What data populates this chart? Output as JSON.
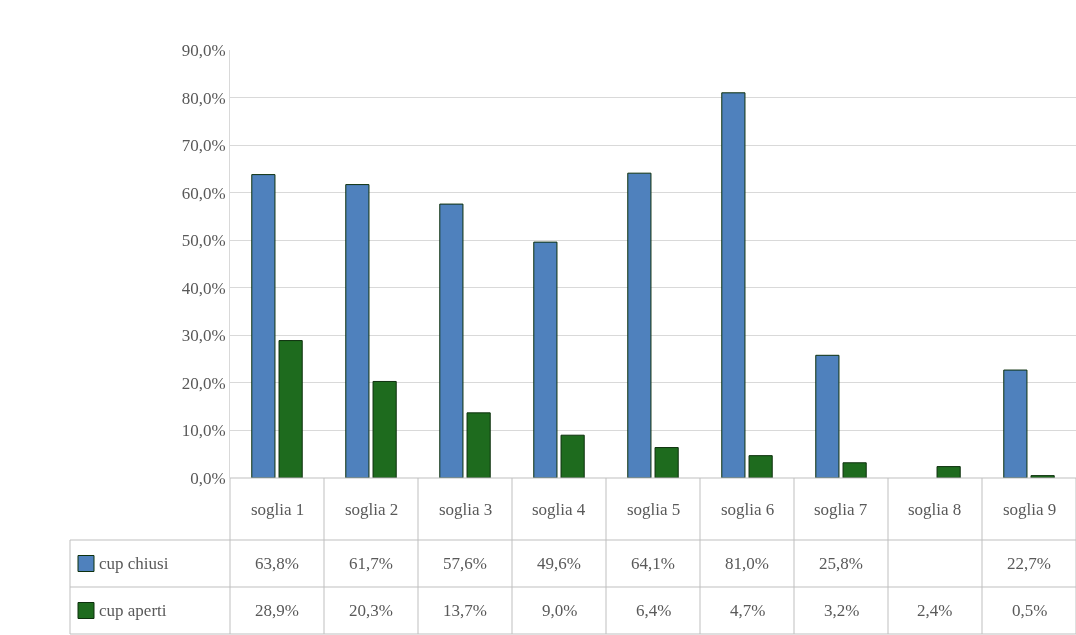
{
  "chart_data": {
    "type": "bar",
    "categories": [
      "soglia 1",
      "soglia 2",
      "soglia 3",
      "soglia 4",
      "soglia 5",
      "soglia 6",
      "soglia 7",
      "soglia 8",
      "soglia 9"
    ],
    "series": [
      {
        "name": "cup chiusi",
        "color": "#4f81bd",
        "values": [
          63.8,
          61.7,
          57.6,
          49.6,
          64.1,
          81.0,
          25.8,
          null,
          22.7
        ],
        "value_labels": [
          "63,8%",
          "61,7%",
          "57,6%",
          "49,6%",
          "64,1%",
          "81,0%",
          "25,8%",
          null,
          "22,7%"
        ]
      },
      {
        "name": "cup aperti",
        "color": "#1e6b1e",
        "values": [
          28.9,
          20.3,
          13.7,
          9.0,
          6.4,
          4.7,
          3.2,
          2.4,
          0.5
        ],
        "value_labels": [
          "28,9%",
          "20,3%",
          "13,7%",
          "9,0%",
          "6,4%",
          "4,7%",
          "3,2%",
          "2,4%",
          "0,5%"
        ]
      }
    ],
    "ylim": [
      0,
      90
    ],
    "yticks": [
      {
        "value": 0,
        "label": "0,0%"
      },
      {
        "value": 10,
        "label": "10,0%"
      },
      {
        "value": 20,
        "label": "20,0%"
      },
      {
        "value": 30,
        "label": "30,0%"
      },
      {
        "value": 40,
        "label": "40,0%"
      },
      {
        "value": 50,
        "label": "50,0%"
      },
      {
        "value": 60,
        "label": "60,0%"
      },
      {
        "value": 70,
        "label": "70,0%"
      },
      {
        "value": 80,
        "label": "80,0%"
      },
      {
        "value": 90,
        "label": "90,0%"
      }
    ],
    "grid": "y",
    "legend": "bottom left"
  }
}
